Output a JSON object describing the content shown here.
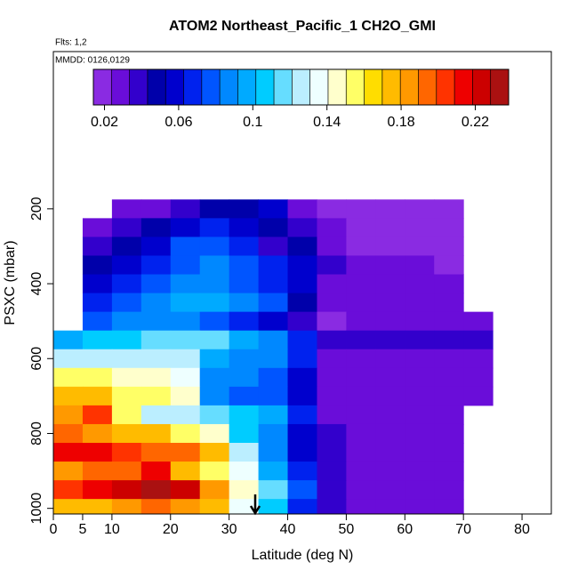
{
  "chart_data": {
    "type": "heatmap",
    "title": "ATOM2 Northeast_Pacific_1 CH2O_GMI",
    "flights": "Flts: 1,2",
    "dates": "MMDD: 0126,0129",
    "x_label": "Latitude (deg N)",
    "y_label": "PSXC (mbar)",
    "xlim": [
      0,
      85
    ],
    "xticks": [
      0,
      5,
      10,
      20,
      30,
      40,
      50,
      60,
      70,
      80
    ],
    "ylim": [
      1015,
      -220
    ],
    "yticks": [
      200,
      400,
      600,
      800,
      1000
    ],
    "x": [
      2.5,
      7.5,
      12.5,
      17.5,
      22.5,
      27.5,
      32.5,
      37.5,
      42.5,
      47.5,
      52.5,
      57.5,
      62.5,
      67.5,
      72.5
    ],
    "y": [
      200,
      250,
      300,
      350,
      400,
      450,
      500,
      550,
      600,
      650,
      700,
      750,
      800,
      850,
      900,
      950,
      1000
    ],
    "z": [
      [
        null,
        null,
        0.03,
        0.03,
        0.04,
        0.05,
        0.05,
        0.06,
        0.03,
        0.02,
        0.02,
        0.02,
        0.02,
        0.02,
        null
      ],
      [
        null,
        0.03,
        0.04,
        0.05,
        0.06,
        0.07,
        0.06,
        0.05,
        0.04,
        0.03,
        0.02,
        0.02,
        0.02,
        0.02,
        null
      ],
      [
        null,
        0.04,
        0.05,
        0.06,
        0.08,
        0.08,
        0.07,
        0.04,
        0.05,
        0.03,
        0.02,
        0.02,
        0.02,
        0.02,
        null
      ],
      [
        null,
        0.05,
        0.06,
        0.07,
        0.08,
        0.09,
        0.08,
        0.07,
        0.06,
        0.04,
        0.03,
        0.03,
        0.03,
        0.02,
        null
      ],
      [
        null,
        0.06,
        0.07,
        0.08,
        0.09,
        0.09,
        0.08,
        0.07,
        0.06,
        0.03,
        0.03,
        0.03,
        0.03,
        0.03,
        null
      ],
      [
        null,
        0.07,
        0.08,
        0.09,
        0.1,
        0.1,
        0.09,
        0.08,
        0.05,
        0.03,
        0.03,
        0.03,
        0.03,
        0.03,
        null
      ],
      [
        null,
        0.08,
        0.09,
        0.09,
        0.09,
        0.08,
        0.07,
        0.06,
        0.04,
        0.02,
        0.03,
        0.03,
        0.03,
        0.03,
        0.03
      ],
      [
        0.1,
        0.11,
        0.11,
        0.12,
        0.12,
        0.12,
        0.1,
        0.09,
        0.07,
        0.04,
        0.04,
        0.04,
        0.04,
        0.04,
        0.04
      ],
      [
        0.13,
        0.13,
        0.13,
        0.13,
        0.13,
        0.1,
        0.09,
        0.09,
        0.07,
        0.03,
        0.03,
        0.03,
        0.03,
        0.03,
        0.03
      ],
      [
        0.16,
        0.16,
        0.15,
        0.15,
        0.14,
        0.09,
        0.09,
        0.08,
        0.06,
        0.03,
        0.03,
        0.03,
        0.03,
        0.03,
        0.03
      ],
      [
        0.17,
        0.17,
        0.16,
        0.16,
        0.15,
        0.09,
        0.08,
        0.08,
        0.06,
        0.03,
        0.03,
        0.03,
        0.03,
        0.03,
        0.03
      ],
      [
        0.18,
        0.2,
        0.16,
        0.13,
        0.13,
        0.12,
        0.11,
        0.1,
        0.07,
        0.03,
        0.03,
        0.03,
        0.03,
        0.03,
        null
      ],
      [
        0.19,
        0.18,
        0.17,
        0.17,
        0.16,
        0.15,
        0.11,
        0.09,
        0.06,
        0.04,
        0.03,
        0.03,
        0.03,
        0.03,
        null
      ],
      [
        0.21,
        0.21,
        0.2,
        0.19,
        0.19,
        0.17,
        0.13,
        0.09,
        0.06,
        0.04,
        0.03,
        0.03,
        0.03,
        0.03,
        null
      ],
      [
        0.18,
        0.19,
        0.19,
        0.21,
        0.17,
        0.16,
        0.14,
        0.1,
        0.07,
        0.04,
        0.03,
        0.03,
        0.03,
        0.03,
        null
      ],
      [
        0.2,
        0.21,
        0.22,
        0.23,
        0.22,
        0.18,
        0.15,
        0.12,
        0.08,
        0.04,
        0.03,
        0.03,
        0.03,
        0.03,
        null
      ],
      [
        0.17,
        0.17,
        0.18,
        0.19,
        0.18,
        0.17,
        0.14,
        0.11,
        0.07,
        0.04,
        0.03,
        0.03,
        0.03,
        0.03,
        null
      ]
    ],
    "clim": [
      0.014,
      0.238
    ],
    "colorbar_ticks": [
      0.02,
      0.06,
      0.1,
      0.14,
      0.18,
      0.22
    ],
    "colors": [
      "#8a2be2",
      "#6a0dd9",
      "#3300cc",
      "#0000aa",
      "#0000cd",
      "#0022ee",
      "#0055ff",
      "#0088ff",
      "#00aaff",
      "#00ccff",
      "#66ddff",
      "#bbeeff",
      "#eeffff",
      "#ffffcc",
      "#ffff66",
      "#ffdd00",
      "#ffbb00",
      "#ff9900",
      "#ff6600",
      "#ff3300",
      "#ee0000",
      "#cc0000",
      "#aa1111"
    ]
  }
}
